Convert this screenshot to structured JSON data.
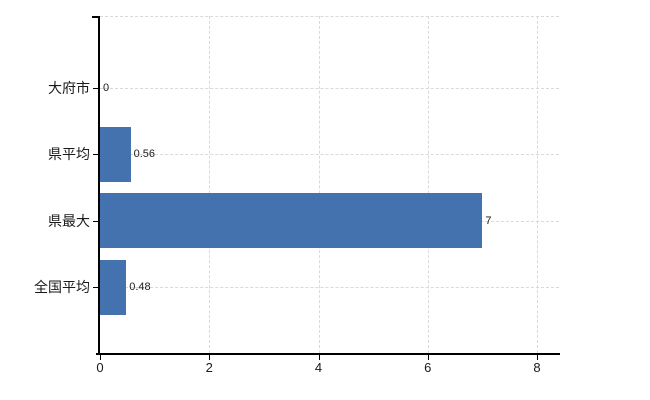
{
  "chart_data": {
    "type": "bar",
    "orientation": "horizontal",
    "title": "",
    "xlabel": "",
    "ylabel": "",
    "categories": [
      "大府市",
      "県平均",
      "県最大",
      "全国平均"
    ],
    "values": [
      0,
      0.56,
      7,
      0.48
    ],
    "value_labels": [
      "0",
      "0.56",
      "7",
      "0.48"
    ],
    "xlim": [
      0,
      8
    ],
    "xticks": [
      0,
      2,
      4,
      6,
      8
    ],
    "xtick_labels": [
      "0",
      "2",
      "4",
      "6",
      "8"
    ],
    "grid": true,
    "legend": false,
    "bar_color": "#4472ae",
    "grid_color": "#d9d9d9",
    "axis_color": "#000000",
    "text_color": "#1a1a1a",
    "background_color": "#ffffff"
  }
}
